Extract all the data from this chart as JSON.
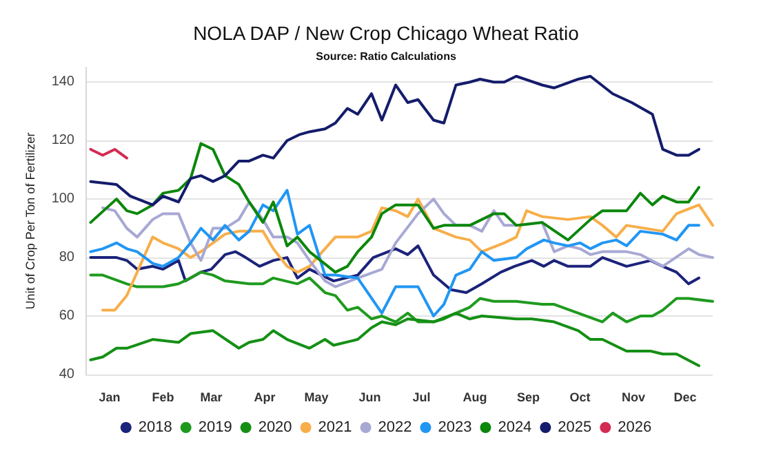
{
  "chart_data": {
    "type": "line",
    "title": "NOLA DAP / New Crop Chicago Wheat Ratio",
    "subtitle": "Source: Ratio Calculations",
    "ylabel": "Unit of Crop Per Ton of Fertilizer",
    "xlim": [
      "--01-01",
      "--12-31"
    ],
    "xticks": [
      {
        "value": "--01-15",
        "label": "Jan"
      },
      {
        "value": "--02-15",
        "label": "Feb"
      },
      {
        "value": "--03-15",
        "label": "Mar"
      },
      {
        "value": "--04-15",
        "label": "Apr"
      },
      {
        "value": "--05-15",
        "label": "May"
      },
      {
        "value": "--06-15",
        "label": "Jun"
      },
      {
        "value": "--07-15",
        "label": "Jul"
      },
      {
        "value": "--08-15",
        "label": "Aug"
      },
      {
        "value": "--09-15",
        "label": "Sep"
      },
      {
        "value": "--10-15",
        "label": "Oct"
      },
      {
        "value": "--11-15",
        "label": "Nov"
      },
      {
        "value": "--12-15",
        "label": "Dec"
      }
    ],
    "ylim": [
      40,
      145
    ],
    "yticks": [
      40,
      60,
      80,
      100,
      120,
      140
    ],
    "grid": "y",
    "legend": "bottom",
    "marker": "none",
    "line_style": "solid",
    "series": [
      {
        "name": "2018",
        "color": "#1b237a",
        "x": [
          "--01-04",
          "--01-19",
          "--01-25",
          "--01-31",
          "--02-09",
          "--02-15",
          "--02-24",
          "--02-28",
          "--03-09",
          "--03-15",
          "--03-23",
          "--03-29",
          "--04-04",
          "--04-12",
          "--04-20",
          "--04-28",
          "--05-04",
          "--05-11",
          "--05-25",
          "--06-08",
          "--06-17",
          "--06-30",
          "--07-07",
          "--07-13",
          "--07-22",
          "--08-01",
          "--08-10",
          "--08-19",
          "--08-30",
          "--09-07",
          "--09-17",
          "--09-24",
          "--09-30",
          "--10-08",
          "--10-21",
          "--10-28",
          "--11-11",
          "--11-25",
          "--12-02",
          "--12-10",
          "--12-17",
          "--12-23"
        ],
        "values": [
          80,
          80,
          79,
          76,
          77,
          76,
          79,
          72,
          75,
          76,
          81,
          82,
          80,
          77,
          79,
          80,
          73,
          76,
          72,
          74,
          80,
          83,
          81,
          84,
          74,
          69,
          68,
          71,
          75,
          77,
          79,
          77,
          79,
          77,
          77,
          80,
          77,
          79,
          77,
          75,
          71,
          73
        ]
      },
      {
        "name": "2019",
        "color": "#1f9a1f",
        "x": [
          "--01-04",
          "--01-11",
          "--01-25",
          "--01-31",
          "--02-15",
          "--02-24",
          "--03-03",
          "--03-09",
          "--03-16",
          "--03-23",
          "--04-06",
          "--04-14",
          "--04-20",
          "--05-04",
          "--05-11",
          "--05-20",
          "--05-26",
          "--06-02",
          "--06-08",
          "--06-16",
          "--06-22",
          "--06-30",
          "--07-07",
          "--07-13",
          "--07-22",
          "--07-28",
          "--08-04",
          "--08-12",
          "--08-18",
          "--08-26",
          "--09-08",
          "--09-23",
          "--09-30",
          "--10-14",
          "--10-28",
          "--11-03",
          "--11-11",
          "--11-19",
          "--11-26",
          "--12-02",
          "--12-10",
          "--12-17",
          "--12-31"
        ],
        "values": [
          74,
          74,
          71,
          70,
          70,
          71,
          73,
          75,
          74,
          72,
          71,
          71,
          73,
          71,
          73,
          68,
          67,
          62,
          63,
          59,
          60,
          58,
          61,
          58,
          58,
          59,
          61,
          63,
          66,
          65,
          65,
          64,
          64,
          61,
          58,
          61,
          58,
          60,
          60,
          62,
          66,
          66,
          65
        ]
      },
      {
        "name": "2020",
        "color": "#148f14",
        "x": [
          "--01-04",
          "--01-11",
          "--01-19",
          "--01-25",
          "--02-09",
          "--02-24",
          "--03-03",
          "--03-16",
          "--03-31",
          "--04-06",
          "--04-14",
          "--04-20",
          "--04-28",
          "--05-11",
          "--05-20",
          "--05-25",
          "--06-08",
          "--06-16",
          "--06-22",
          "--06-30",
          "--07-07",
          "--07-22",
          "--08-04",
          "--08-12",
          "--08-19",
          "--09-08",
          "--09-17",
          "--09-30",
          "--10-14",
          "--10-21",
          "--10-28",
          "--11-11",
          "--11-25",
          "--12-02",
          "--12-10",
          "--12-23"
        ],
        "values": [
          45,
          46,
          49,
          49,
          52,
          51,
          54,
          55,
          49,
          51,
          52,
          55,
          52,
          49,
          52,
          50,
          52,
          56,
          58,
          57,
          59,
          58,
          61,
          59,
          60,
          59,
          59,
          58,
          55,
          52,
          52,
          48,
          48,
          47,
          47,
          43
        ]
      },
      {
        "name": "2021",
        "color": "#f7ae4a",
        "x": [
          "--01-11",
          "--01-18",
          "--01-25",
          "--02-09",
          "--02-15",
          "--02-24",
          "--03-03",
          "--03-09",
          "--03-16",
          "--03-23",
          "--03-31",
          "--04-14",
          "--04-20",
          "--04-28",
          "--05-04",
          "--05-11",
          "--05-26",
          "--06-08",
          "--06-16",
          "--06-22",
          "--06-30",
          "--07-07",
          "--07-13",
          "--07-22",
          "--08-04",
          "--08-12",
          "--08-19",
          "--09-01",
          "--09-08",
          "--09-14",
          "--09-23",
          "--10-08",
          "--10-21",
          "--10-28",
          "--11-05",
          "--11-11",
          "--12-02",
          "--12-10",
          "--12-23",
          "--12-31"
        ],
        "values": [
          62,
          62,
          67,
          87,
          85,
          83,
          80,
          82,
          85,
          88,
          89,
          89,
          83,
          77,
          75,
          77,
          87,
          87,
          89,
          97,
          96,
          94,
          100,
          90,
          87,
          86,
          82,
          85,
          87,
          96,
          94,
          93,
          94,
          91,
          87,
          91,
          89,
          95,
          98,
          91
        ]
      },
      {
        "name": "2022",
        "color": "#a8a8d4",
        "x": [
          "--01-11",
          "--01-18",
          "--01-25",
          "--01-31",
          "--02-09",
          "--02-15",
          "--02-24",
          "--03-03",
          "--03-09",
          "--03-16",
          "--03-23",
          "--03-31",
          "--04-06",
          "--04-14",
          "--04-20",
          "--04-28",
          "--05-04",
          "--05-11",
          "--05-20",
          "--05-26",
          "--06-08",
          "--06-22",
          "--06-30",
          "--07-13",
          "--07-22",
          "--07-28",
          "--08-04",
          "--08-12",
          "--08-19",
          "--08-26",
          "--09-01",
          "--09-08",
          "--09-23",
          "--09-30",
          "--10-08",
          "--10-15",
          "--10-21",
          "--10-28",
          "--11-11",
          "--11-19",
          "--12-02",
          "--12-17",
          "--12-23",
          "--12-31"
        ],
        "values": [
          97,
          96,
          90,
          87,
          93,
          95,
          95,
          85,
          79,
          90,
          90,
          93,
          99,
          93,
          87,
          87,
          85,
          79,
          72,
          70,
          73,
          76,
          85,
          95,
          100,
          95,
          91,
          91,
          89,
          96,
          91,
          91,
          92,
          82,
          84,
          83,
          81,
          82,
          82,
          81,
          77,
          83,
          81,
          80
        ]
      },
      {
        "name": "2023",
        "color": "#2196f3",
        "x": [
          "--01-04",
          "--01-11",
          "--01-19",
          "--01-25",
          "--01-31",
          "--02-09",
          "--02-15",
          "--02-24",
          "--03-03",
          "--03-09",
          "--03-16",
          "--03-23",
          "--03-31",
          "--04-06",
          "--04-14",
          "--04-20",
          "--04-28",
          "--05-04",
          "--05-11",
          "--05-20",
          "--05-26",
          "--06-08",
          "--06-22",
          "--06-30",
          "--07-13",
          "--07-22",
          "--07-28",
          "--08-04",
          "--08-12",
          "--08-19",
          "--08-26",
          "--09-08",
          "--09-14",
          "--09-24",
          "--09-30",
          "--10-08",
          "--10-15",
          "--10-21",
          "--10-28",
          "--11-05",
          "--11-11",
          "--11-19",
          "--12-02",
          "--12-10",
          "--12-17",
          "--12-23"
        ],
        "values": [
          82,
          83,
          85,
          83,
          82,
          78,
          77,
          80,
          85,
          90,
          86,
          91,
          86,
          89,
          98,
          96,
          103,
          88,
          91,
          74,
          74,
          73,
          61,
          70,
          70,
          60,
          64,
          74,
          76,
          82,
          79,
          80,
          83,
          86,
          85,
          84,
          85,
          83,
          85,
          86,
          84,
          89,
          88,
          86,
          91,
          91
        ]
      },
      {
        "name": "2024",
        "color": "#0b870b",
        "x": [
          "--01-04",
          "--01-19",
          "--01-25",
          "--01-31",
          "--02-09",
          "--02-15",
          "--02-24",
          "--03-03",
          "--03-09",
          "--03-16",
          "--03-23",
          "--03-31",
          "--04-06",
          "--04-14",
          "--04-20",
          "--04-28",
          "--05-04",
          "--05-11",
          "--05-26",
          "--06-02",
          "--06-08",
          "--06-16",
          "--06-22",
          "--06-30",
          "--07-13",
          "--07-22",
          "--07-28",
          "--08-04",
          "--08-12",
          "--08-26",
          "--09-01",
          "--09-08",
          "--09-23",
          "--10-08",
          "--10-21",
          "--10-28",
          "--11-11",
          "--11-19",
          "--11-26",
          "--12-02",
          "--12-10",
          "--12-17",
          "--12-23"
        ],
        "values": [
          92,
          100,
          96,
          95,
          98,
          102,
          103,
          107,
          119,
          117,
          108,
          105,
          99,
          92,
          99,
          84,
          87,
          82,
          75,
          77,
          82,
          87,
          95,
          98,
          98,
          90,
          91,
          91,
          91,
          95,
          95,
          91,
          92,
          86,
          93,
          96,
          96,
          102,
          98,
          101,
          99,
          99,
          104
        ]
      },
      {
        "name": "2025",
        "color": "#141c6b",
        "x": [
          "--01-04",
          "--01-19",
          "--01-27",
          "--02-09",
          "--02-15",
          "--02-24",
          "--03-03",
          "--03-09",
          "--03-16",
          "--03-23",
          "--03-31",
          "--04-06",
          "--04-14",
          "--04-20",
          "--04-28",
          "--05-05",
          "--05-11",
          "--05-20",
          "--05-26",
          "--06-02",
          "--06-08",
          "--06-16",
          "--06-22",
          "--06-30",
          "--07-07",
          "--07-13",
          "--07-22",
          "--07-28",
          "--08-04",
          "--08-12",
          "--08-18",
          "--08-26",
          "--09-01",
          "--09-08",
          "--09-23",
          "--09-30",
          "--10-14",
          "--10-21",
          "--11-03",
          "--11-14",
          "--11-26",
          "--12-02",
          "--12-10",
          "--12-17",
          "--12-23"
        ],
        "values": [
          106,
          105,
          101,
          98,
          101,
          99,
          107,
          108,
          106,
          108,
          113,
          113,
          115,
          114,
          120,
          122,
          123,
          124,
          126,
          131,
          129,
          136,
          127,
          139,
          133,
          134,
          127,
          126,
          139,
          140,
          141,
          140,
          140,
          142,
          139,
          138,
          141,
          142,
          136,
          133,
          129,
          117,
          115,
          115,
          117
        ]
      },
      {
        "name": "2026",
        "color": "#d42a52",
        "x": [
          "--01-04",
          "--01-11",
          "--01-18",
          "--01-25"
        ],
        "values": [
          117,
          115,
          117,
          114
        ]
      }
    ]
  }
}
